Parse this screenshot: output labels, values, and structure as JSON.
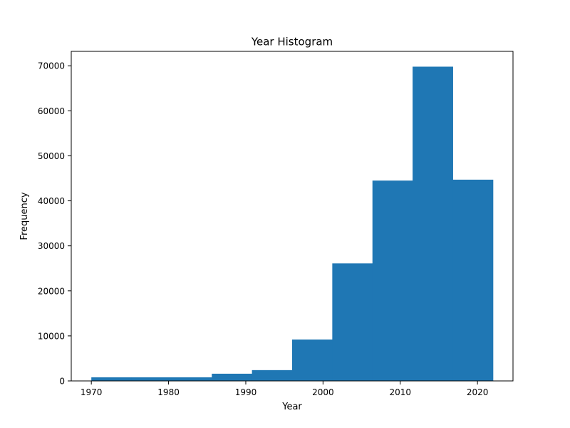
{
  "chart_data": {
    "type": "bar",
    "title": "Year Histogram",
    "xlabel": "Year",
    "ylabel": "Frequency",
    "bar_color": "#1f77b4",
    "grid": false,
    "xlim": [
      1967.4,
      2024.6
    ],
    "ylim": [
      0,
      73200
    ],
    "x_ticks": [
      1970,
      1980,
      1990,
      2000,
      2010,
      2020
    ],
    "y_ticks": [
      0,
      10000,
      20000,
      30000,
      40000,
      50000,
      60000,
      70000
    ],
    "bins": [
      {
        "start": 1970.0,
        "end": 1975.2,
        "value": 800
      },
      {
        "start": 1975.2,
        "end": 1980.4,
        "value": 800
      },
      {
        "start": 1980.4,
        "end": 1985.6,
        "value": 800
      },
      {
        "start": 1985.6,
        "end": 1990.8,
        "value": 1600
      },
      {
        "start": 1990.8,
        "end": 1996.0,
        "value": 2400
      },
      {
        "start": 1996.0,
        "end": 2001.2,
        "value": 9200
      },
      {
        "start": 2001.2,
        "end": 2006.4,
        "value": 26100
      },
      {
        "start": 2006.4,
        "end": 2011.6,
        "value": 44500
      },
      {
        "start": 2011.6,
        "end": 2016.8,
        "value": 69800
      },
      {
        "start": 2016.8,
        "end": 2022.0,
        "value": 44700
      }
    ]
  }
}
